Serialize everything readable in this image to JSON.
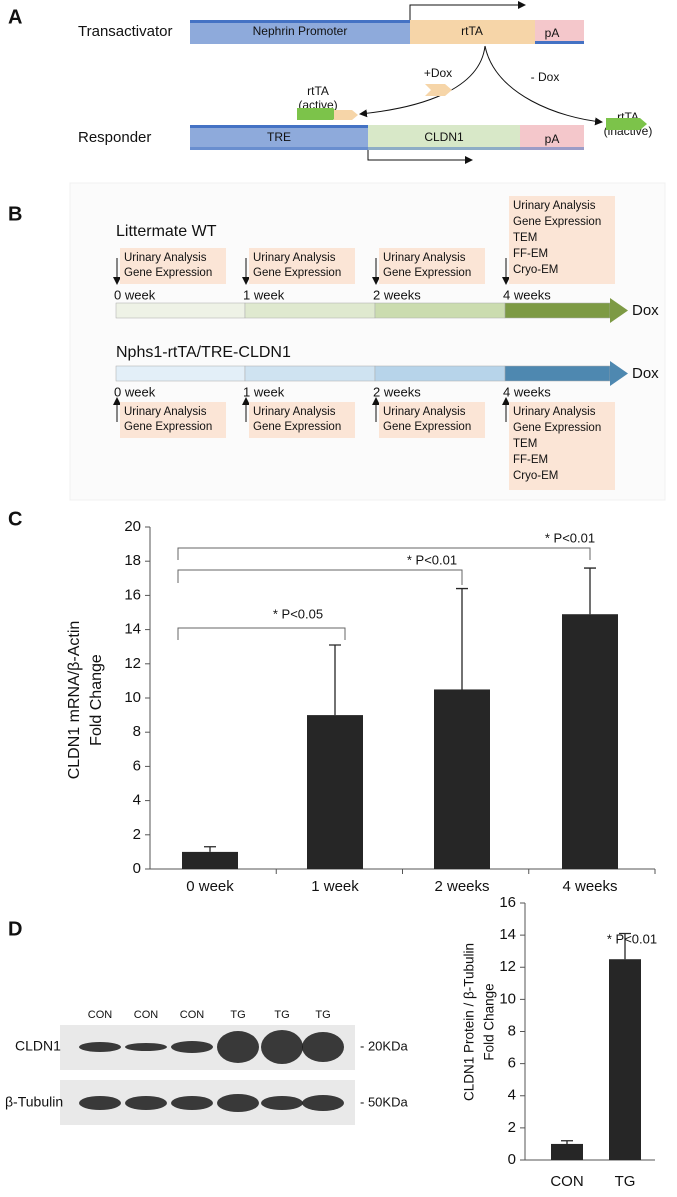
{
  "panel_a": {
    "label": "A",
    "transactivator": {
      "name": "Transactivator",
      "promoter": "Nephrin Promoter",
      "gene": "rtTA",
      "polya": "pA"
    },
    "plus_dox": "+Dox",
    "minus_dox": "- Dox",
    "active": [
      "rtTA",
      "(active)"
    ],
    "inactive": [
      "rtTA",
      "(inactive)"
    ],
    "responder": {
      "name": "Responder",
      "promoter": "TRE",
      "gene": "CLDN1",
      "polya": "pA"
    }
  },
  "panel_b": {
    "label": "B",
    "wt": {
      "title": "Littermate WT",
      "timepoints": [
        "0 week",
        "1 week",
        "2 weeks",
        "4 weeks"
      ],
      "assays": [
        [
          "Urinary Analysis",
          "Gene Expression"
        ],
        [
          "Urinary Analysis",
          "Gene Expression"
        ],
        [
          "Urinary Analysis",
          "Gene Expression"
        ],
        [
          "Urinary Analysis",
          "Gene Expression",
          "TEM",
          "FF-EM",
          "Cryo-EM"
        ]
      ],
      "treatment": "Dox"
    },
    "tg": {
      "title": "Nphs1-rtTA/TRE-CLDN1",
      "timepoints": [
        "0 week",
        "1 week",
        "2 weeks",
        "4 weeks"
      ],
      "assays": [
        [
          "Urinary Analysis",
          "Gene Expression"
        ],
        [
          "Urinary Analysis",
          "Gene Expression"
        ],
        [
          "Urinary Analysis",
          "Gene Expression"
        ],
        [
          "Urinary Analysis",
          "Gene Expression",
          "TEM",
          "FF-EM",
          "Cryo-EM"
        ]
      ],
      "treatment": "Dox"
    }
  },
  "panel_c": {
    "label": "C"
  },
  "panel_d": {
    "label": "D",
    "lanes": [
      "CON",
      "CON",
      "CON",
      "TG",
      "TG",
      "TG"
    ],
    "rows": [
      "CLDN1",
      "β-Tubulin"
    ],
    "sizes": [
      "- 20KDa",
      "- 50KDa"
    ]
  },
  "chart_data": [
    {
      "type": "bar",
      "categories": [
        "0 week",
        "1 week",
        "2 weeks",
        "4 weeks"
      ],
      "values": [
        1,
        9,
        10.5,
        14.9
      ],
      "errors": [
        0.3,
        4.1,
        5.9,
        2.7
      ],
      "color": "#262626",
      "ylabel": [
        "CLDN1 mRNA/β-Actin",
        "Fold Change"
      ],
      "ylim": [
        0,
        20
      ],
      "yticks": [
        0,
        2,
        4,
        6,
        8,
        10,
        12,
        14,
        16,
        18,
        20
      ],
      "annotations": [
        "* P<0.05",
        "* P<0.01",
        "* P<0.01"
      ]
    },
    {
      "type": "bar",
      "categories": [
        "CON",
        "TG"
      ],
      "values": [
        1,
        12.5
      ],
      "errors": [
        0.2,
        1.6
      ],
      "color": "#262626",
      "ylabel": [
        "CLDN1 Protein / β-Tubulin",
        "Fold Change"
      ],
      "ylim": [
        0,
        16
      ],
      "yticks": [
        0,
        2,
        4,
        6,
        8,
        10,
        12,
        14,
        16
      ],
      "annotations": [
        "* P<0.01"
      ]
    }
  ]
}
